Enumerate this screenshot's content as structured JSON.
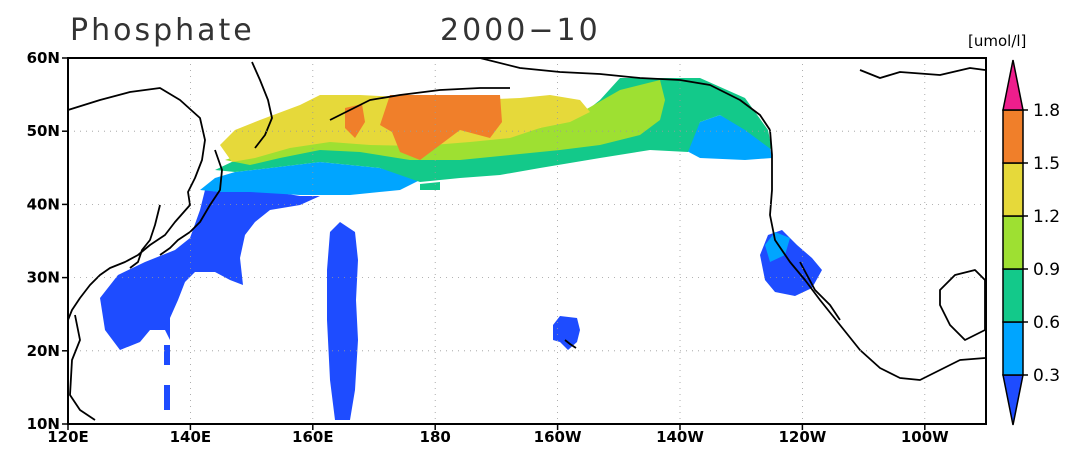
{
  "title": "Phosphate",
  "date": "2000−10",
  "unit": "[umol/l]",
  "x_ticks": [
    "120E",
    "140E",
    "160E",
    "180",
    "160W",
    "140W",
    "120W",
    "100W"
  ],
  "y_ticks": [
    "10N",
    "20N",
    "30N",
    "40N",
    "50N",
    "60N"
  ],
  "colorbar": {
    "levels": [
      "0.3",
      "0.6",
      "0.9",
      "1.2",
      "1.5",
      "1.8"
    ],
    "colors": [
      "#1e4cff",
      "#00a5ff",
      "#13c98a",
      "#9ee032",
      "#e6d93a",
      "#f07f2a",
      "#ee1e8c"
    ]
  },
  "chart_data": {
    "type": "heatmap",
    "variable": "Phosphate",
    "period": "2000−10",
    "units": "[umol/l]",
    "x_range": [
      120,
      270
    ],
    "y_range": [
      10,
      60
    ],
    "grid": true,
    "contour_levels": [
      0.3,
      0.6,
      0.9,
      1.2,
      1.5,
      1.8
    ],
    "cells": [
      [
        125,
        28,
        0.2
      ],
      [
        130,
        28,
        0.2
      ],
      [
        135,
        28,
        0.2
      ],
      [
        128,
        24,
        0.2
      ],
      [
        133,
        24,
        0.2
      ],
      [
        137,
        30,
        0.2
      ],
      [
        140,
        33,
        0.2
      ],
      [
        143,
        36,
        0.2
      ],
      [
        146,
        38,
        0.2
      ],
      [
        149,
        41,
        0.2
      ],
      [
        152,
        40,
        0.2
      ],
      [
        157,
        40,
        0.2
      ],
      [
        163,
        35,
        0.2
      ],
      [
        163,
        30,
        0.2
      ],
      [
        163,
        25,
        0.2
      ],
      [
        163,
        20,
        0.2
      ],
      [
        163,
        15,
        0.2
      ],
      [
        163,
        11,
        0.2
      ],
      [
        200,
        22,
        0.2
      ],
      [
        240,
        33,
        0.2
      ],
      [
        237,
        30,
        0.2
      ],
      [
        242,
        29,
        0.2
      ],
      [
        150,
        43,
        0.4
      ],
      [
        155,
        43,
        0.4
      ],
      [
        162,
        43,
        0.4
      ],
      [
        170,
        42,
        0.4
      ],
      [
        238,
        35,
        0.4
      ],
      [
        230,
        48,
        0.5
      ],
      [
        227,
        46,
        0.4
      ],
      [
        155,
        45,
        0.7
      ],
      [
        165,
        44,
        0.7
      ],
      [
        175,
        43,
        0.7
      ],
      [
        185,
        43,
        0.7
      ],
      [
        195,
        44,
        0.7
      ],
      [
        205,
        46,
        0.75
      ],
      [
        213,
        50,
        0.8
      ],
      [
        218,
        53,
        0.8
      ],
      [
        222,
        52,
        0.8
      ],
      [
        225,
        48,
        0.75
      ],
      [
        205,
        54,
        0.7
      ],
      [
        213,
        55,
        0.8
      ],
      [
        153,
        47,
        1.0
      ],
      [
        160,
        46,
        1.0
      ],
      [
        170,
        45,
        1.0
      ],
      [
        180,
        45,
        1.0
      ],
      [
        190,
        46,
        1.0
      ],
      [
        200,
        48,
        1.0
      ],
      [
        207,
        52,
        1.0
      ],
      [
        155,
        49,
        1.35
      ],
      [
        160,
        49,
        1.35
      ],
      [
        165,
        51,
        1.35
      ],
      [
        170,
        51,
        1.35
      ],
      [
        180,
        48,
        1.35
      ],
      [
        190,
        49,
        1.35
      ],
      [
        195,
        52,
        1.35
      ],
      [
        160,
        52,
        1.35
      ],
      [
        200,
        53,
        1.2
      ],
      [
        175,
        52,
        1.6
      ],
      [
        180,
        51,
        1.6
      ],
      [
        185,
        52,
        1.6
      ],
      [
        188,
        53,
        1.6
      ],
      [
        172,
        49,
        1.6
      ]
    ]
  }
}
